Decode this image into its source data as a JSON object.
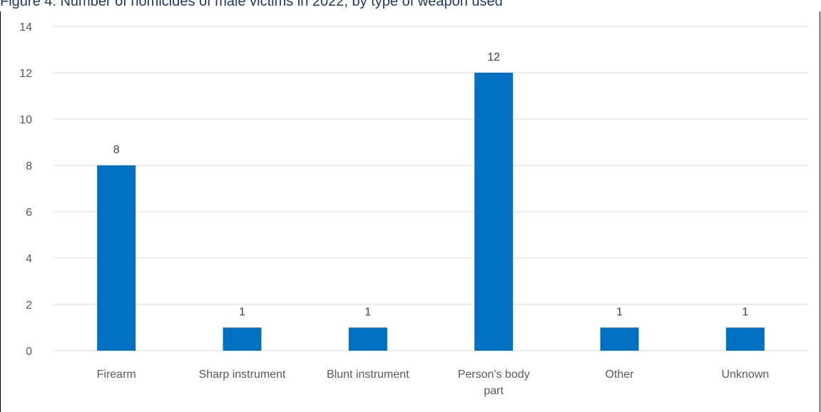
{
  "figure": {
    "caption": "Figure 4: Number of homicides of male victims in 2022, by type of weapon used"
  },
  "chart_data": {
    "type": "bar",
    "categories": [
      "Firearm",
      "Sharp instrument",
      "Blunt instrument",
      "Person's body part",
      "Other",
      "Unknown"
    ],
    "values": [
      8,
      1,
      1,
      12,
      1,
      1
    ],
    "title": "",
    "xlabel": "",
    "ylabel": "",
    "ylim": [
      0,
      14
    ],
    "yticks": [
      0,
      2,
      4,
      6,
      8,
      10,
      12,
      14
    ],
    "grid": true,
    "data_labels": true,
    "bar_color": "#0070C0",
    "grid_color": "#D9D9D9"
  }
}
